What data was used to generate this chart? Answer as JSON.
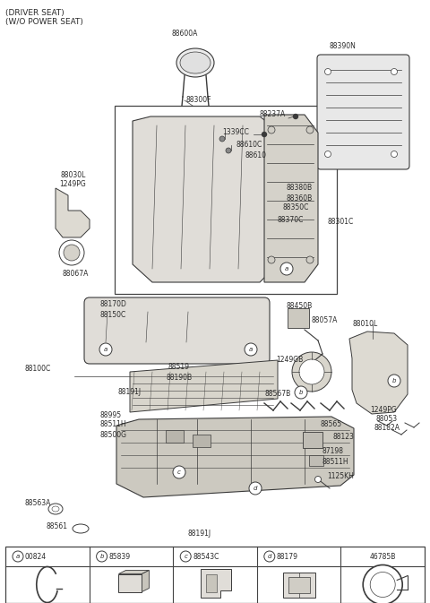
{
  "title_line1": "(DRIVER SEAT)",
  "title_line2": "(W/O POWER SEAT)",
  "bg_color": "#ffffff",
  "lc": "#3a3a3a",
  "tc": "#2a2a2a",
  "fs": 5.5,
  "title_fs": 6.5,
  "fig_w": 4.8,
  "fig_h": 6.73,
  "dpi": 100,
  "legend_items": [
    {
      "letter": "a",
      "code": "00824"
    },
    {
      "letter": "b",
      "code": "85839"
    },
    {
      "letter": "c",
      "code": "88543C"
    },
    {
      "letter": "d",
      "code": "88179"
    },
    {
      "letter": "",
      "code": "46785B"
    }
  ]
}
